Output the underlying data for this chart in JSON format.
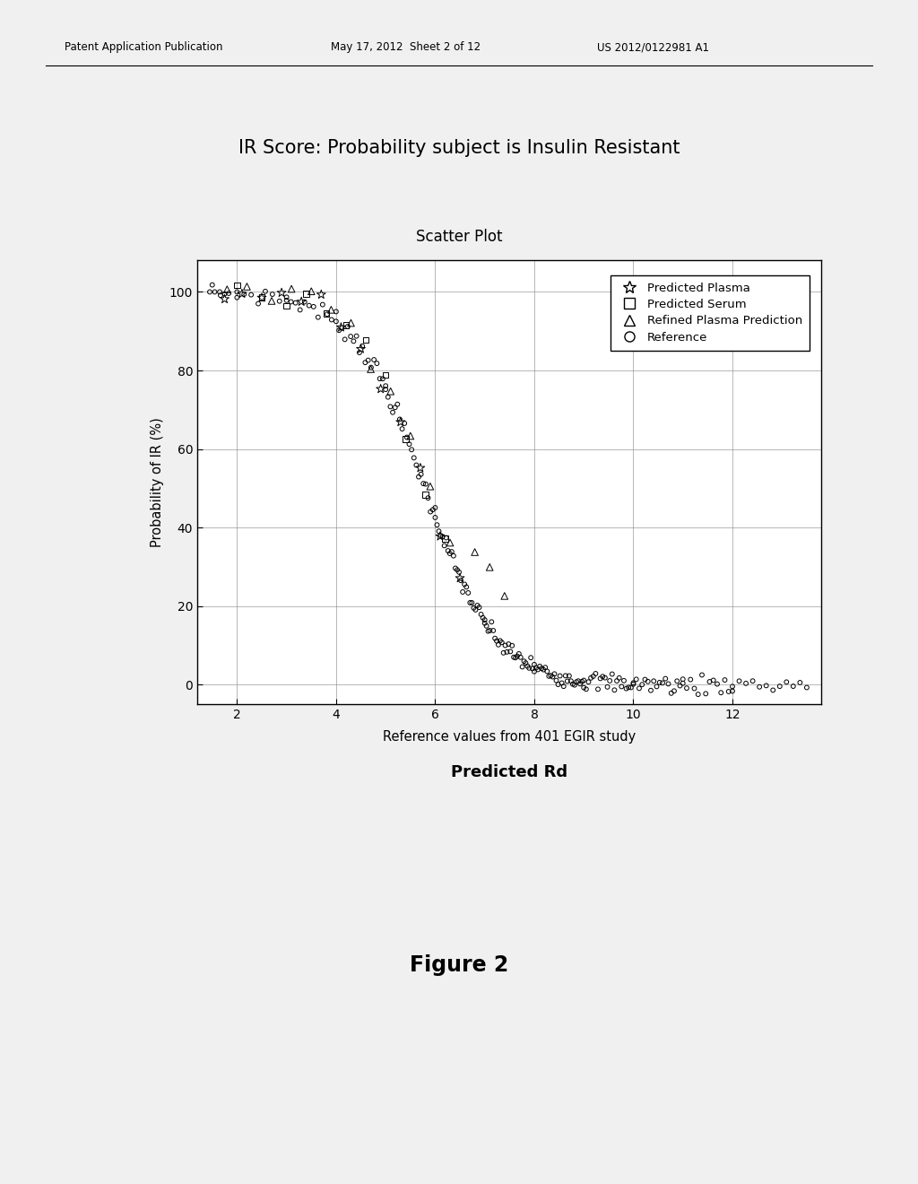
{
  "title": "IR Score: Probability subject is Insulin Resistant",
  "subtitle": "Scatter Plot",
  "xlabel_top": "Reference values from 401 EGIR study",
  "xlabel_bottom": "Predicted Rd",
  "ylabel": "Probability of IR (%)",
  "figure2_label": "Figure 2",
  "header_left": "Patent Application Publication",
  "header_mid": "May 17, 2012  Sheet 2 of 12",
  "header_right": "US 2012/0122981 A1",
  "xlim": [
    1.2,
    13.8
  ],
  "ylim": [
    -5,
    108
  ],
  "xticks": [
    2,
    4,
    6,
    8,
    10,
    12
  ],
  "yticks": [
    0,
    20,
    40,
    60,
    80,
    100
  ],
  "background_color": "#f0f0f0",
  "plot_bg_color": "#ffffff",
  "grid_color": "#888888",
  "marker_color": "#000000",
  "midpoint": 5.8,
  "steepness": 1.4
}
